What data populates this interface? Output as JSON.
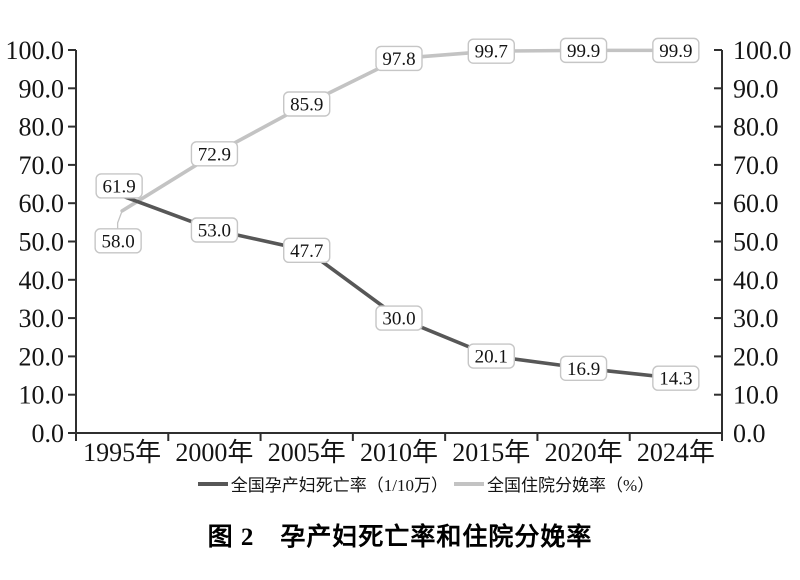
{
  "chart_data": {
    "type": "line",
    "title": "图 2　孕产妇死亡率和住院分娩率",
    "categories": [
      "1995年",
      "2000年",
      "2005年",
      "2010年",
      "2015年",
      "2020年",
      "2024年"
    ],
    "series": [
      {
        "name": "全国孕产妇死亡率（1/10万）",
        "key": "maternal-mortality-rate",
        "color": "#575757",
        "values": [
          61.9,
          53.0,
          47.7,
          30.0,
          20.1,
          16.9,
          14.3
        ],
        "labels": [
          "61.9",
          "53.0",
          "47.7",
          "30.0",
          "20.1",
          "16.9",
          "14.3"
        ]
      },
      {
        "name": "全国住院分娩率（%）",
        "key": "hospital-delivery-rate",
        "color": "#c3c3c3",
        "values": [
          58.0,
          72.9,
          85.9,
          97.8,
          99.7,
          99.9,
          99.9
        ],
        "labels": [
          "58.0",
          "72.9",
          "85.9",
          "97.8",
          "99.7",
          "99.9",
          "99.9"
        ]
      }
    ],
    "y_axis_left": {
      "min": 0,
      "max": 100,
      "step": 10,
      "ticks": [
        "0.0",
        "10.0",
        "20.0",
        "30.0",
        "40.0",
        "50.0",
        "60.0",
        "70.0",
        "80.0",
        "90.0",
        "100.0"
      ]
    },
    "y_axis_right": {
      "min": 0,
      "max": 100,
      "step": 10,
      "ticks": [
        "0.0",
        "10.0",
        "20.0",
        "30.0",
        "40.0",
        "50.0",
        "60.0",
        "70.0",
        "80.0",
        "90.0",
        "100.0"
      ]
    },
    "legend_position": "bottom",
    "grid": false,
    "data_labels": true
  },
  "colors": {
    "axis": "#2f2f2f",
    "text": "#141414",
    "label_box_border": "#c6c6c6",
    "label_box_fill": "#ffffff",
    "background": "#ffffff"
  }
}
